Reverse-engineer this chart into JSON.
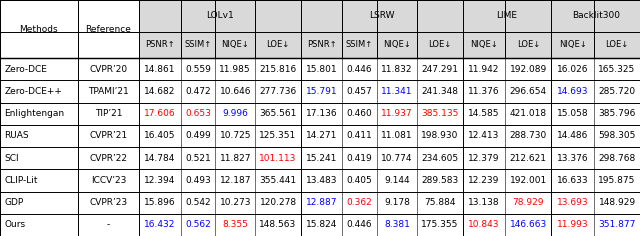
{
  "rows": [
    [
      "Zero-DCE",
      "CVPR’20",
      "14.861",
      "0.559",
      "11.985",
      "215.816",
      "15.801",
      "0.446",
      "11.832",
      "247.291",
      "11.942",
      "192.089",
      "16.026",
      "165.325"
    ],
    [
      "Zero-DCE++",
      "TPAMI’21",
      "14.682",
      "0.472",
      "10.646",
      "277.736",
      "15.791",
      "0.457",
      "11.341",
      "241.348",
      "11.376",
      "296.654",
      "14.693",
      "285.720"
    ],
    [
      "Enlightengan",
      "TIP’21",
      "17.606",
      "0.653",
      "9.996",
      "365.561",
      "17.136",
      "0.460",
      "11.937",
      "385.135",
      "14.585",
      "421.018",
      "15.058",
      "385.796"
    ],
    [
      "RUAS",
      "CVPR’21",
      "16.405",
      "0.499",
      "10.725",
      "125.351",
      "14.271",
      "0.411",
      "11.081",
      "198.930",
      "12.413",
      "288.730",
      "14.486",
      "598.305"
    ],
    [
      "SCI",
      "CVPR’22",
      "14.784",
      "0.521",
      "11.827",
      "101.113",
      "15.241",
      "0.419",
      "10.774",
      "234.605",
      "12.379",
      "212.621",
      "13.376",
      "298.768"
    ],
    [
      "CLIP-Lit",
      "ICCV’23",
      "12.394",
      "0.493",
      "12.187",
      "355.441",
      "13.483",
      "0.405",
      "9.144",
      "289.583",
      "12.239",
      "192.001",
      "16.633",
      "195.875"
    ],
    [
      "GDP",
      "CVPR’23",
      "15.896",
      "0.542",
      "10.273",
      "120.278",
      "12.887",
      "0.362",
      "9.178",
      "75.884",
      "13.138",
      "78.929",
      "13.693",
      "148.929"
    ],
    [
      "Ours",
      "-",
      "16.432",
      "0.562",
      "8.355",
      "148.563",
      "15.824",
      "0.446",
      "8.381",
      "175.355",
      "10.843",
      "146.663",
      "11.993",
      "351.877"
    ]
  ],
  "cell_colors": {
    "2,2": "red",
    "2,3": "red",
    "2,4": "blue",
    "4,5": "red",
    "1,6": "blue",
    "6,6": "blue",
    "6,7": "red",
    "1,8": "blue",
    "2,8": "red",
    "2,9": "red",
    "6,11": "red",
    "1,12": "blue",
    "6,12": "red",
    "4,14": "blue",
    "6,15": "red",
    "0,15": "blue",
    "7,2": "blue",
    "7,3": "blue",
    "7,4": "red",
    "7,8": "blue",
    "7,10": "red",
    "7,11": "blue",
    "7,12": "red",
    "7,13": "blue",
    "7,14": "red"
  },
  "bg_header": "#d9d9d9",
  "figsize": [
    6.4,
    2.36
  ],
  "dpi": 100
}
